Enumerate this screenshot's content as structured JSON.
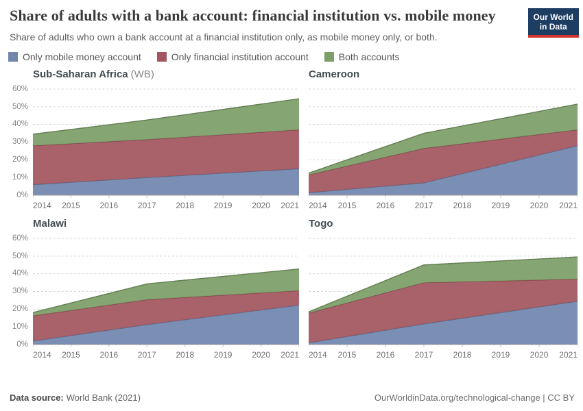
{
  "header": {
    "title": "Share of adults with a bank account: financial institution vs. mobile money",
    "subtitle": "Share of adults who own a bank account at a financial institution only, as mobile money only, or both.",
    "logo": {
      "line1": "Our World",
      "line2": "in Data",
      "bg_color": "#1d3d63",
      "accent_color": "#d0342c"
    }
  },
  "legend": {
    "position": "top",
    "items": [
      {
        "label": "Only mobile money account",
        "color": "#7185ad"
      },
      {
        "label": "Only financial institution account",
        "color": "#a2555f"
      },
      {
        "label": "Both accounts",
        "color": "#7c9e67"
      }
    ]
  },
  "axis": {
    "y_ticks": [
      "0%",
      "10%",
      "20%",
      "30%",
      "40%",
      "50%",
      "60%"
    ],
    "x_ticks": [
      "2014",
      "2015",
      "2016",
      "2017",
      "2018",
      "2019",
      "2020",
      "2021"
    ],
    "grid": "dashed-horizontal"
  },
  "chart_data": [
    {
      "type": "area",
      "stacked": true,
      "title": "Sub-Saharan Africa",
      "title_suffix": "(WB)",
      "x": [
        2014,
        2017,
        2021
      ],
      "x_axis_ticks": [
        2014,
        2015,
        2016,
        2017,
        2018,
        2019,
        2020,
        2021
      ],
      "ylim": [
        0,
        60
      ],
      "unit": "%",
      "series": [
        {
          "name": "Only mobile money account",
          "values": [
            6,
            10,
            15
          ],
          "color": "#7185ad"
        },
        {
          "name": "Only financial institution account",
          "values": [
            22,
            21.5,
            22
          ],
          "color": "#a2555f"
        },
        {
          "name": "Both accounts",
          "values": [
            6.5,
            11,
            17.5
          ],
          "color": "#7c9e67"
        }
      ]
    },
    {
      "type": "area",
      "stacked": true,
      "title": "Cameroon",
      "title_suffix": "",
      "x": [
        2014,
        2017,
        2021
      ],
      "x_axis_ticks": [
        2014,
        2015,
        2016,
        2017,
        2018,
        2019,
        2020,
        2021
      ],
      "ylim": [
        0,
        60
      ],
      "unit": "%",
      "series": [
        {
          "name": "Only mobile money account",
          "values": [
            1.5,
            7,
            28
          ],
          "color": "#7185ad"
        },
        {
          "name": "Only financial institution account",
          "values": [
            10,
            19.5,
            9
          ],
          "color": "#a2555f"
        },
        {
          "name": "Both accounts",
          "values": [
            1,
            8.5,
            14.5
          ],
          "color": "#7c9e67"
        }
      ]
    },
    {
      "type": "area",
      "stacked": true,
      "title": "Malawi",
      "title_suffix": "",
      "x": [
        2014,
        2017,
        2021
      ],
      "x_axis_ticks": [
        2014,
        2015,
        2016,
        2017,
        2018,
        2019,
        2020,
        2021
      ],
      "ylim": [
        0,
        60
      ],
      "unit": "%",
      "series": [
        {
          "name": "Only mobile money account",
          "values": [
            2,
            11.3,
            22.3
          ],
          "color": "#7185ad"
        },
        {
          "name": "Only financial institution account",
          "values": [
            14.3,
            14.1,
            8.2
          ],
          "color": "#a2555f"
        },
        {
          "name": "Both accounts",
          "values": [
            1.8,
            8.9,
            12.2
          ],
          "color": "#7c9e67"
        }
      ]
    },
    {
      "type": "area",
      "stacked": true,
      "title": "Togo",
      "title_suffix": "",
      "x": [
        2014,
        2017,
        2021
      ],
      "x_axis_ticks": [
        2014,
        2015,
        2016,
        2017,
        2018,
        2019,
        2020,
        2021
      ],
      "ylim": [
        0,
        60
      ],
      "unit": "%",
      "series": [
        {
          "name": "Only mobile money account",
          "values": [
            1,
            11.7,
            24.5
          ],
          "color": "#7185ad"
        },
        {
          "name": "Only financial institution account",
          "values": [
            16.8,
            23.3,
            12.5
          ],
          "color": "#a2555f"
        },
        {
          "name": "Both accounts",
          "values": [
            0.7,
            10,
            12.5
          ],
          "color": "#7c9e67"
        }
      ]
    }
  ],
  "footer": {
    "source_label": "Data source:",
    "source_value": "World Bank (2021)",
    "citation": "OurWorldinData.org/technological-change | CC BY"
  }
}
